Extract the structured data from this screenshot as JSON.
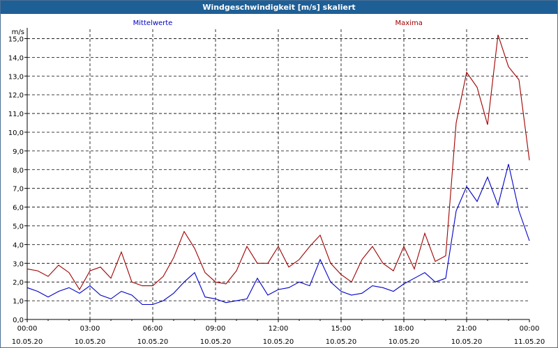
{
  "window": {
    "title": "Windgeschwindigkeit [m/s] skaliert"
  },
  "chart_data": {
    "type": "line",
    "title": "Windgeschwindigkeit [m/s] skaliert",
    "ylabel": "m/s",
    "xlabel": "",
    "ylim": [
      0,
      15.5
    ],
    "grid": true,
    "legend_placement": "top",
    "x_start": "10.05.20 00:00",
    "x_end": "11.05.20 00:00",
    "x_ticks": [
      {
        "time": "00:00",
        "date": "10.05.20"
      },
      {
        "time": "03:00",
        "date": "10.05.20"
      },
      {
        "time": "06:00",
        "date": "10.05.20"
      },
      {
        "time": "09:00",
        "date": "10.05.20"
      },
      {
        "time": "12:00",
        "date": "10.05.20"
      },
      {
        "time": "15:00",
        "date": "10.05.20"
      },
      {
        "time": "18:00",
        "date": "10.05.20"
      },
      {
        "time": "21:00",
        "date": "10.05.20"
      },
      {
        "time": "00:00",
        "date": "11.05.20"
      }
    ],
    "y_ticks": [
      "0,0",
      "1,0",
      "2,0",
      "3,0",
      "4,0",
      "5,0",
      "6,0",
      "7,0",
      "8,0",
      "9,0",
      "10,0",
      "11,0",
      "12,0",
      "13,0",
      "14,0",
      "15,0"
    ],
    "series": [
      {
        "name": "Mittelwerte",
        "color": "#0000c8",
        "x_times": [
          "00:00",
          "00:30",
          "01:00",
          "01:30",
          "02:00",
          "02:30",
          "03:00",
          "03:30",
          "04:00",
          "04:30",
          "05:00",
          "05:30",
          "06:00",
          "06:30",
          "07:00",
          "07:30",
          "08:00",
          "08:30",
          "09:00",
          "09:30",
          "10:00",
          "10:30",
          "11:00",
          "11:30",
          "12:00",
          "12:30",
          "13:00",
          "13:30",
          "14:00",
          "14:30",
          "15:00",
          "15:30",
          "16:00",
          "16:30",
          "17:00",
          "17:30",
          "18:00",
          "18:30",
          "19:00",
          "19:30",
          "20:00",
          "20:30",
          "21:00",
          "21:30",
          "22:00",
          "22:30",
          "23:00",
          "23:30",
          "24:00"
        ],
        "values": [
          1.7,
          1.5,
          1.2,
          1.5,
          1.7,
          1.4,
          1.8,
          1.3,
          1.1,
          1.5,
          1.3,
          0.8,
          0.8,
          1.0,
          1.4,
          2.0,
          2.5,
          1.2,
          1.1,
          0.9,
          1.0,
          1.1,
          2.2,
          1.3,
          1.6,
          1.7,
          2.0,
          1.8,
          3.2,
          2.0,
          1.5,
          1.3,
          1.4,
          1.8,
          1.7,
          1.5,
          1.9,
          2.2,
          2.5,
          2.0,
          2.2,
          5.8,
          7.1,
          6.3,
          7.6,
          6.1,
          8.3,
          5.8,
          4.2
        ]
      },
      {
        "name": "Maxima",
        "color": "#a00000",
        "x_times": [
          "00:00",
          "00:30",
          "01:00",
          "01:30",
          "02:00",
          "02:30",
          "03:00",
          "03:30",
          "04:00",
          "04:30",
          "05:00",
          "05:30",
          "06:00",
          "06:30",
          "07:00",
          "07:30",
          "08:00",
          "08:30",
          "09:00",
          "09:30",
          "10:00",
          "10:30",
          "11:00",
          "11:30",
          "12:00",
          "12:30",
          "13:00",
          "13:30",
          "14:00",
          "14:30",
          "15:00",
          "15:30",
          "16:00",
          "16:30",
          "17:00",
          "17:30",
          "18:00",
          "18:30",
          "19:00",
          "19:30",
          "20:00",
          "20:30",
          "21:00",
          "21:30",
          "22:00",
          "22:30",
          "23:00",
          "23:30",
          "24:00"
        ],
        "values": [
          2.7,
          2.6,
          2.3,
          2.9,
          2.5,
          1.6,
          2.6,
          2.8,
          2.2,
          3.6,
          2.0,
          1.8,
          1.8,
          2.3,
          3.3,
          4.7,
          3.8,
          2.5,
          2.0,
          1.9,
          2.6,
          3.9,
          3.0,
          3.0,
          3.9,
          2.8,
          3.2,
          3.9,
          4.5,
          3.0,
          2.4,
          2.0,
          3.2,
          3.9,
          3.0,
          2.6,
          3.9,
          2.7,
          4.6,
          3.1,
          3.4,
          10.5,
          13.2,
          12.4,
          10.4,
          15.2,
          13.5,
          12.8,
          8.5
        ]
      }
    ]
  }
}
